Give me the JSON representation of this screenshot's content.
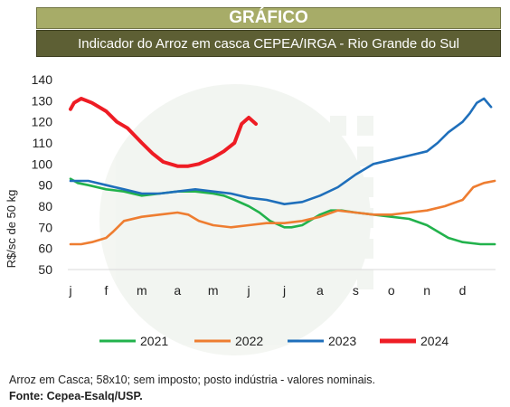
{
  "banner": {
    "title": "GRÁFICO",
    "subtitle": "Indicador do Arroz em casca CEPEA/IRGA - Rio Grande do Sul"
  },
  "chart_data": {
    "type": "line",
    "title": "Indicador do Arroz em casca CEPEA/IRGA - Rio Grande do Sul",
    "xlabel": "",
    "ylabel": "R$/sc de 50 kg",
    "ylim": [
      50,
      140
    ],
    "yticks": [
      50,
      60,
      70,
      80,
      90,
      100,
      110,
      120,
      130,
      140
    ],
    "xticks": [
      "j",
      "f",
      "m",
      "a",
      "m",
      "j",
      "j",
      "a",
      "s",
      "o",
      "n",
      "d"
    ],
    "grid": false,
    "legend_position": "bottom",
    "series": [
      {
        "name": "2021",
        "color": "#22b24c",
        "x": [
          0,
          0.2,
          0.5,
          1,
          1.5,
          2,
          2.5,
          3,
          3.5,
          4,
          4.3,
          4.6,
          5,
          5.3,
          5.6,
          6,
          6.2,
          6.5,
          7,
          7.3,
          7.6,
          8,
          8.5,
          9,
          9.5,
          10,
          10.3,
          10.6,
          11,
          11.5,
          11.9
        ],
        "values": [
          93,
          91,
          90,
          88,
          87,
          85,
          86,
          87,
          87,
          86,
          85,
          83,
          80,
          77,
          73,
          70,
          70,
          71,
          76,
          78,
          78,
          77,
          76,
          75,
          74,
          71,
          68,
          65,
          63,
          62,
          62
        ]
      },
      {
        "name": "2022",
        "color": "#ee7d31",
        "x": [
          0,
          0.3,
          0.6,
          1,
          1.2,
          1.5,
          2,
          2.5,
          3,
          3.3,
          3.6,
          4,
          4.5,
          5,
          5.5,
          6,
          6.5,
          7,
          7.5,
          8,
          8.5,
          9,
          9.5,
          10,
          10.5,
          11,
          11.3,
          11.6,
          11.9
        ],
        "values": [
          62,
          62,
          63,
          65,
          68,
          73,
          75,
          76,
          77,
          76,
          73,
          71,
          70,
          71,
          72,
          72,
          73,
          75,
          78,
          77,
          76,
          76,
          77,
          78,
          80,
          83,
          89,
          91,
          92
        ]
      },
      {
        "name": "2023",
        "color": "#1f6fbb",
        "x": [
          0,
          0.5,
          1,
          1.5,
          2,
          2.5,
          3,
          3.5,
          4,
          4.5,
          5,
          5.5,
          6,
          6.5,
          7,
          7.5,
          8,
          8.5,
          9,
          9.5,
          10,
          10.3,
          10.6,
          11,
          11.2,
          11.4,
          11.6,
          11.8
        ],
        "values": [
          92,
          92,
          90,
          88,
          86,
          86,
          87,
          88,
          87,
          86,
          84,
          83,
          81,
          82,
          85,
          89,
          95,
          100,
          102,
          104,
          106,
          110,
          115,
          120,
          124,
          129,
          131,
          127
        ]
      },
      {
        "name": "2024",
        "color": "#ee1c24",
        "x": [
          0,
          0.1,
          0.3,
          0.6,
          1,
          1.3,
          1.6,
          2,
          2.3,
          2.6,
          3,
          3.3,
          3.6,
          4,
          4.3,
          4.6,
          4.8,
          5,
          5.2
        ],
        "values": [
          126,
          129,
          131,
          129,
          125,
          120,
          117,
          110,
          105,
          101,
          99,
          99,
          100,
          103,
          106,
          110,
          119,
          122,
          119
        ]
      }
    ]
  },
  "footnotes": {
    "note": "Arroz em Casca; 58x10; sem imposto; posto indústria - valores nominais.",
    "source": "Fonte: Cepea-Esalq/USP."
  }
}
